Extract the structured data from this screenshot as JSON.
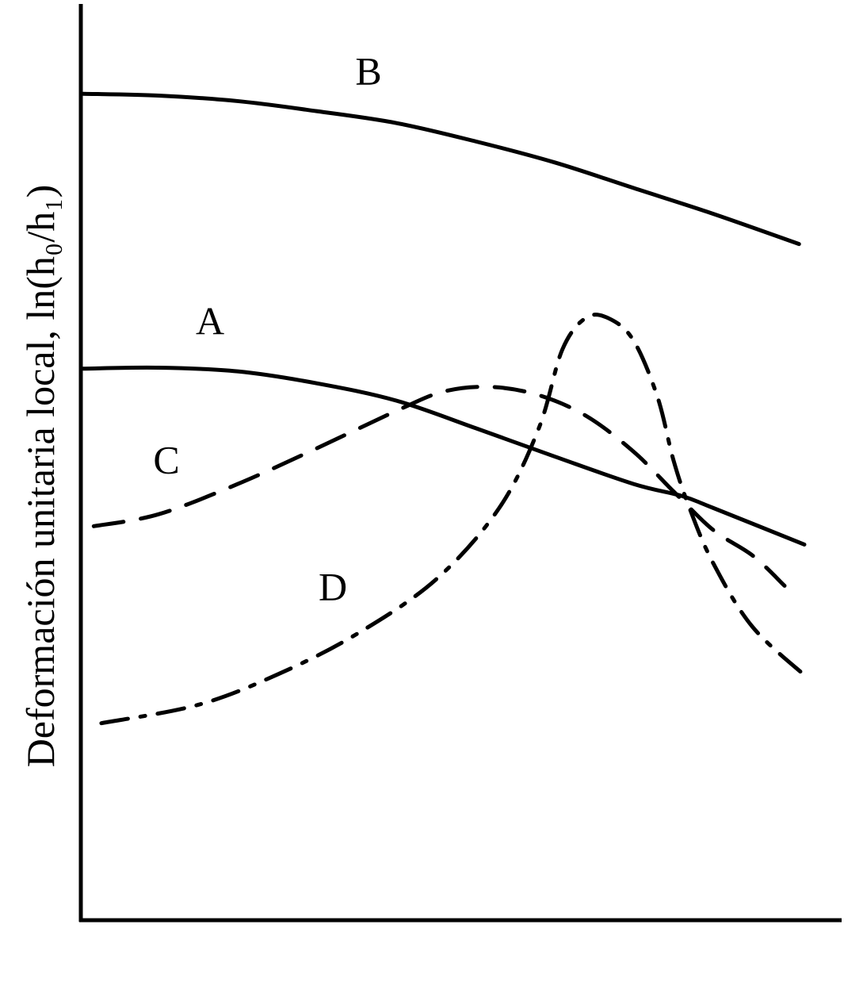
{
  "chart_data": {
    "type": "line",
    "ylabel": "Deformación unitaria local, ln(h₀/h₁)",
    "xlim": [
      0,
      100
    ],
    "ylim": [
      0,
      100
    ],
    "series": [
      {
        "name": "B",
        "color": "#000000",
        "style": "solid",
        "x": [
          0.3,
          10.2,
          20.6,
          31.0,
          41.5,
          51.9,
          62.3,
          72.7,
          83.1,
          94.4
        ],
        "values": [
          90.2,
          90.0,
          89.4,
          88.3,
          87.0,
          85.0,
          82.7,
          79.9,
          77.1,
          73.8
        ]
      },
      {
        "name": "A",
        "color": "#000000",
        "style": "solid",
        "x": [
          0.3,
          10.2,
          20.6,
          31.0,
          41.5,
          51.9,
          62.3,
          72.7,
          79.0,
          83.1,
          95.1
        ],
        "values": [
          60.2,
          60.3,
          59.9,
          58.6,
          56.7,
          53.7,
          50.6,
          47.6,
          46.3,
          45.0,
          41.0
        ]
      },
      {
        "name": "C",
        "color": "#000000",
        "style": "dashed",
        "x": [
          1.7,
          10.2,
          20.6,
          31.0,
          41.5,
          47.7,
          53.9,
          60.2,
          66.5,
          72.7,
          77.9,
          83.1,
          88.3,
          92.5
        ],
        "values": [
          43.0,
          44.3,
          47.6,
          51.5,
          55.6,
          57.7,
          58.2,
          57.3,
          55.0,
          51.1,
          46.8,
          42.6,
          39.8,
          36.5
        ]
      },
      {
        "name": "D",
        "color": "#000000",
        "style": "dashdot",
        "x": [
          2.7,
          15.4,
          25.8,
          36.2,
          46.7,
          55.0,
          60.2,
          63.3,
          66.5,
          69.6,
          72.7,
          75.8,
          77.9,
          80.0,
          83.1,
          88.3,
          95.6
        ],
        "values": [
          21.5,
          23.5,
          26.8,
          31.2,
          37.2,
          45.0,
          53.7,
          62.3,
          65.8,
          65.6,
          63.2,
          57.1,
          50.2,
          45.0,
          39.0,
          32.0,
          26.4
        ]
      }
    ]
  }
}
